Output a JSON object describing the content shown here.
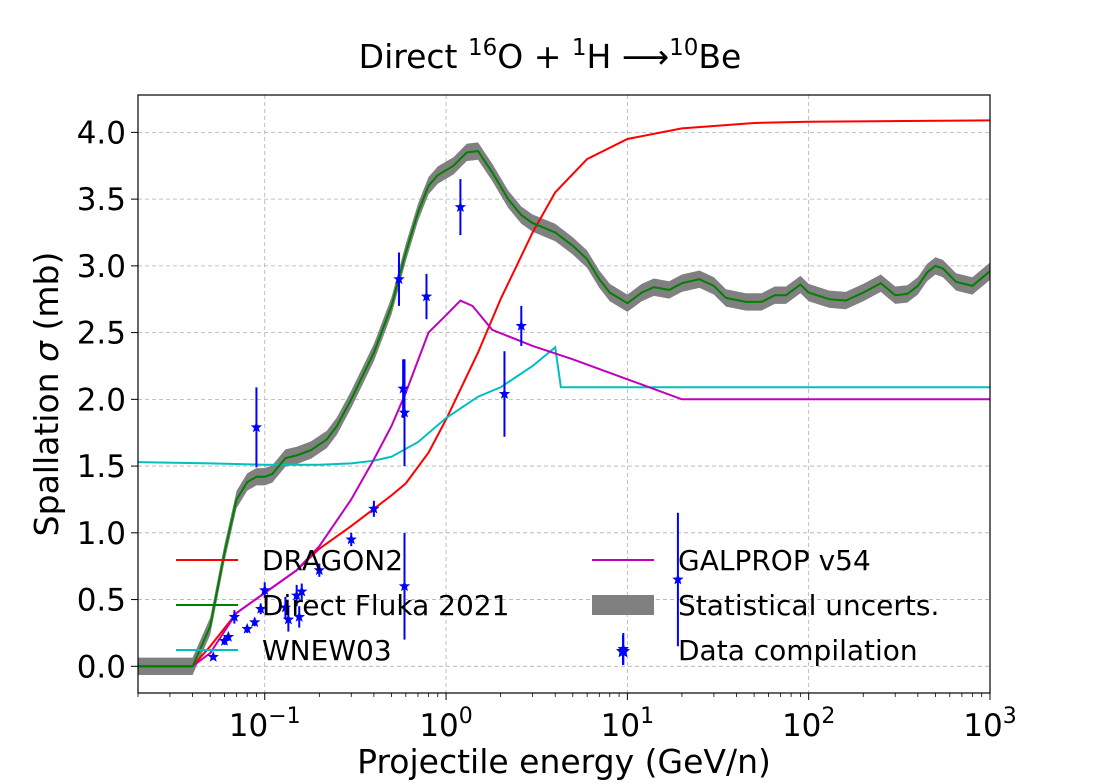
{
  "chart_data": {
    "type": "line",
    "title": {
      "prefix": "Direct ",
      "a_mass": "16",
      "a_sym": "O + ",
      "b_mass": "1",
      "b_sym": "H ",
      "arrow": "⟶",
      "c_mass": "10",
      "c_sym": "Be"
    },
    "xlabel": "Projectile energy (GeV/n)",
    "ylabel": {
      "pre": "Spallation ",
      "sym": "σ",
      "post": " (mb)"
    },
    "xscale": "log",
    "xlim": [
      0.02,
      1000
    ],
    "ylim": [
      -0.2,
      4.28
    ],
    "grid": true,
    "legend_position": "lower-center, two columns",
    "x_ticks": [
      {
        "value": 0.1,
        "base": "10",
        "exp": "−1"
      },
      {
        "value": 1,
        "base": "10",
        "exp": "0"
      },
      {
        "value": 10,
        "base": "10",
        "exp": "1"
      },
      {
        "value": 100,
        "base": "10",
        "exp": "2"
      },
      {
        "value": 1000,
        "base": "10",
        "exp": "3"
      }
    ],
    "y_ticks": [
      "0.0",
      "0.5",
      "1.0",
      "1.5",
      "2.0",
      "2.5",
      "3.0",
      "3.5",
      "4.0"
    ],
    "series": [
      {
        "name": "DRAGON2",
        "color": "#ff0000",
        "points": [
          [
            0.02,
            0
          ],
          [
            0.04,
            0
          ],
          [
            0.05,
            0.15
          ],
          [
            0.07,
            0.4
          ],
          [
            0.1,
            0.55
          ],
          [
            0.15,
            0.72
          ],
          [
            0.2,
            0.88
          ],
          [
            0.3,
            1.05
          ],
          [
            0.4,
            1.18
          ],
          [
            0.5,
            1.28
          ],
          [
            0.6,
            1.37
          ],
          [
            0.8,
            1.6
          ],
          [
            1,
            1.85
          ],
          [
            1.5,
            2.35
          ],
          [
            2,
            2.75
          ],
          [
            3,
            3.25
          ],
          [
            4,
            3.55
          ],
          [
            6,
            3.8
          ],
          [
            10,
            3.95
          ],
          [
            20,
            4.03
          ],
          [
            50,
            4.07
          ],
          [
            100,
            4.08
          ],
          [
            1000,
            4.09
          ]
        ]
      },
      {
        "name": "Direct Fluka 2021",
        "color": "#008000",
        "points": [
          [
            0.02,
            0
          ],
          [
            0.04,
            0
          ],
          [
            0.05,
            0.3
          ],
          [
            0.06,
            0.85
          ],
          [
            0.07,
            1.25
          ],
          [
            0.08,
            1.38
          ],
          [
            0.09,
            1.42
          ],
          [
            0.1,
            1.42
          ],
          [
            0.11,
            1.44
          ],
          [
            0.13,
            1.56
          ],
          [
            0.15,
            1.58
          ],
          [
            0.18,
            1.62
          ],
          [
            0.22,
            1.7
          ],
          [
            0.25,
            1.8
          ],
          [
            0.3,
            2.0
          ],
          [
            0.4,
            2.35
          ],
          [
            0.5,
            2.7
          ],
          [
            0.6,
            3.1
          ],
          [
            0.7,
            3.4
          ],
          [
            0.8,
            3.6
          ],
          [
            0.9,
            3.68
          ],
          [
            1.1,
            3.75
          ],
          [
            1.3,
            3.85
          ],
          [
            1.5,
            3.86
          ],
          [
            1.8,
            3.7
          ],
          [
            2.2,
            3.5
          ],
          [
            2.6,
            3.38
          ],
          [
            3.0,
            3.32
          ],
          [
            4.0,
            3.25
          ],
          [
            5.0,
            3.15
          ],
          [
            6.0,
            3.05
          ],
          [
            7.0,
            2.9
          ],
          [
            8.0,
            2.8
          ],
          [
            10,
            2.72
          ],
          [
            12,
            2.8
          ],
          [
            14,
            2.84
          ],
          [
            17,
            2.82
          ],
          [
            20,
            2.87
          ],
          [
            25,
            2.9
          ],
          [
            30,
            2.85
          ],
          [
            35,
            2.76
          ],
          [
            45,
            2.73
          ],
          [
            55,
            2.73
          ],
          [
            65,
            2.78
          ],
          [
            75,
            2.78
          ],
          [
            90,
            2.86
          ],
          [
            100,
            2.8
          ],
          [
            130,
            2.75
          ],
          [
            160,
            2.74
          ],
          [
            200,
            2.8
          ],
          [
            250,
            2.87
          ],
          [
            300,
            2.78
          ],
          [
            350,
            2.79
          ],
          [
            400,
            2.85
          ],
          [
            450,
            2.95
          ],
          [
            500,
            3.0
          ],
          [
            550,
            2.98
          ],
          [
            650,
            2.88
          ],
          [
            800,
            2.85
          ],
          [
            1000,
            2.96
          ]
        ]
      },
      {
        "name": "WNEW03",
        "color": "#00bfbf",
        "points": [
          [
            0.02,
            1.53
          ],
          [
            0.05,
            1.52
          ],
          [
            0.1,
            1.51
          ],
          [
            0.2,
            1.51
          ],
          [
            0.3,
            1.52
          ],
          [
            0.4,
            1.54
          ],
          [
            0.5,
            1.57
          ],
          [
            0.7,
            1.68
          ],
          [
            1.0,
            1.86
          ],
          [
            1.5,
            2.02
          ],
          [
            2.0,
            2.09
          ],
          [
            3.0,
            2.25
          ],
          [
            4.0,
            2.39
          ],
          [
            4.3,
            2.09
          ],
          [
            1000,
            2.09
          ]
        ]
      },
      {
        "name": "GALPROP v54",
        "color": "#bf00bf",
        "points": [
          [
            0.02,
            0
          ],
          [
            0.04,
            0
          ],
          [
            0.05,
            0.1
          ],
          [
            0.07,
            0.4
          ],
          [
            0.1,
            0.55
          ],
          [
            0.15,
            0.72
          ],
          [
            0.2,
            0.9
          ],
          [
            0.3,
            1.25
          ],
          [
            0.4,
            1.55
          ],
          [
            0.5,
            1.8
          ],
          [
            0.6,
            2.05
          ],
          [
            0.8,
            2.5
          ],
          [
            1.0,
            2.63
          ],
          [
            1.2,
            2.74
          ],
          [
            1.4,
            2.7
          ],
          [
            1.8,
            2.52
          ],
          [
            3,
            2.4
          ],
          [
            5,
            2.3
          ],
          [
            10,
            2.15
          ],
          [
            20,
            2.0
          ],
          [
            1000,
            2.0
          ]
        ]
      }
    ],
    "band": {
      "name": "Statistical uncerts.",
      "color": "#808080",
      "half_width": 0.065
    },
    "data": {
      "name": "Data compilation",
      "color": "#0000ff",
      "points": [
        [
          0.052,
          0.07,
          0.02
        ],
        [
          0.06,
          0.19,
          0.03
        ],
        [
          0.063,
          0.22,
          0.03
        ],
        [
          0.068,
          0.37,
          0.05
        ],
        [
          0.08,
          0.28,
          0.03
        ],
        [
          0.088,
          0.33,
          0.03
        ],
        [
          0.09,
          1.79,
          0.3
        ],
        [
          0.095,
          0.43,
          0.04
        ],
        [
          0.1,
          0.57,
          0.06
        ],
        [
          0.13,
          0.44,
          0.08
        ],
        [
          0.135,
          0.35,
          0.09
        ],
        [
          0.15,
          0.53,
          0.08
        ],
        [
          0.155,
          0.37,
          0.08
        ],
        [
          0.16,
          0.56,
          0.06
        ],
        [
          0.2,
          0.72,
          0.05
        ],
        [
          0.3,
          0.95,
          0.05
        ],
        [
          0.4,
          1.18,
          0.06
        ],
        [
          0.55,
          2.9,
          0.2
        ],
        [
          0.58,
          2.08,
          0.22
        ],
        [
          0.59,
          1.9,
          0.4
        ],
        [
          0.59,
          0.6,
          0.4
        ],
        [
          0.78,
          2.77,
          0.17
        ],
        [
          1.2,
          3.44,
          0.21
        ],
        [
          2.1,
          2.04,
          0.32
        ],
        [
          2.6,
          2.55,
          0.15
        ],
        [
          9.5,
          0.13,
          0.12
        ],
        [
          19,
          0.65,
          0.5
        ]
      ]
    }
  }
}
